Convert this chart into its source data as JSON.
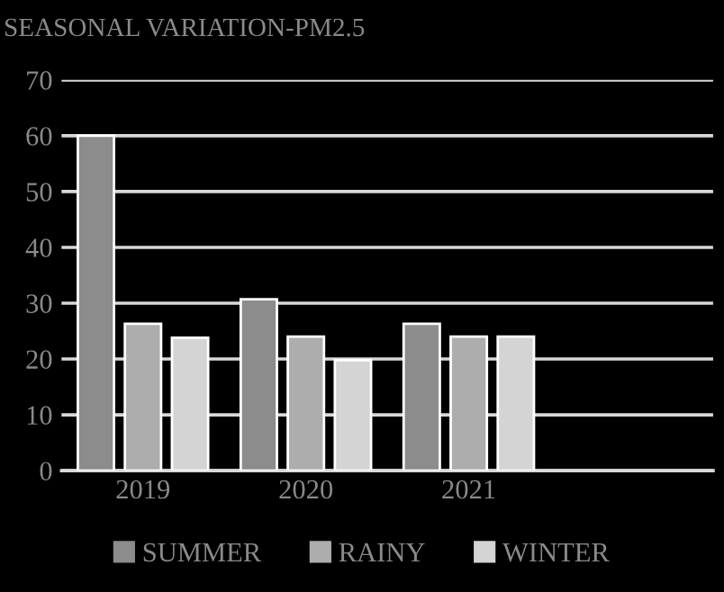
{
  "chart_data": {
    "type": "bar",
    "title": "SEASONAL VARIATION-PM2.5",
    "categories": [
      "2019",
      "2020",
      "2021",
      null
    ],
    "series": [
      {
        "name": "SUMMER",
        "color": "#8c8c8c",
        "values": [
          60,
          30.7,
          26.3,
          null
        ]
      },
      {
        "name": "RAINY",
        "color": "#adadad",
        "values": [
          26.3,
          24,
          24,
          null
        ]
      },
      {
        "name": "WINTER",
        "color": "#d4d4d4",
        "values": [
          23.8,
          19.8,
          24,
          null
        ]
      }
    ],
    "ylim": [
      0,
      70
    ],
    "yticks": [
      0,
      10,
      20,
      30,
      40,
      50,
      60,
      70
    ],
    "grid": "y",
    "legend": "bottom"
  }
}
